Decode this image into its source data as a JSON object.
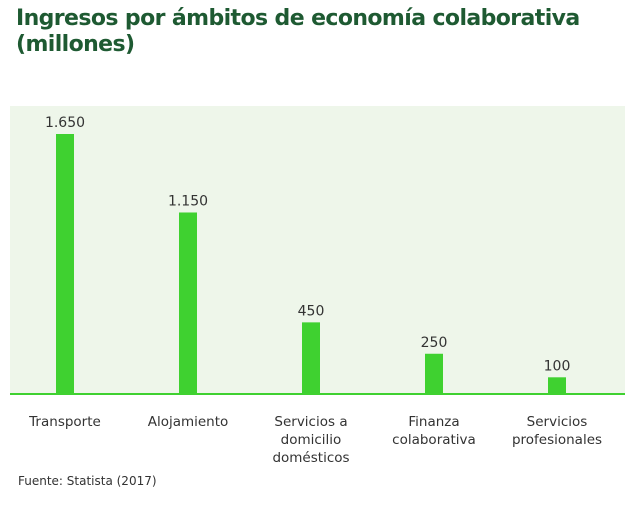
{
  "title_line1": "Ingresos por ámbitos de economía colaborativa",
  "title_line2": "(millones)",
  "source": "Fuente: Statista (2017)",
  "colors": {
    "bar": "#3fd130",
    "baseline": "#3fd130",
    "title": "#1e5a32",
    "plot_background": "#eef6ea"
  },
  "chart_data": {
    "type": "bar",
    "title": "Ingresos por ámbitos de economía colaborativa (millones)",
    "categories": [
      "Transporte",
      "Alojamiento",
      "Servicios a domicilio domésticos",
      "Finanza colaborativa",
      "Servicios profesionales"
    ],
    "category_lines": [
      [
        "Transporte"
      ],
      [
        "Alojamiento"
      ],
      [
        "Servicios a",
        "domicilio",
        "domésticos"
      ],
      [
        "Finanza",
        "colaborativa"
      ],
      [
        "Servicios",
        "profesionales"
      ]
    ],
    "values": [
      1650,
      1150,
      450,
      250,
      100
    ],
    "value_labels": [
      "1.650",
      "1.150",
      "450",
      "250",
      "100"
    ],
    "xlabel": "",
    "ylabel": "",
    "ylim": [
      0,
      1650
    ],
    "grid": false,
    "legend": "none"
  }
}
